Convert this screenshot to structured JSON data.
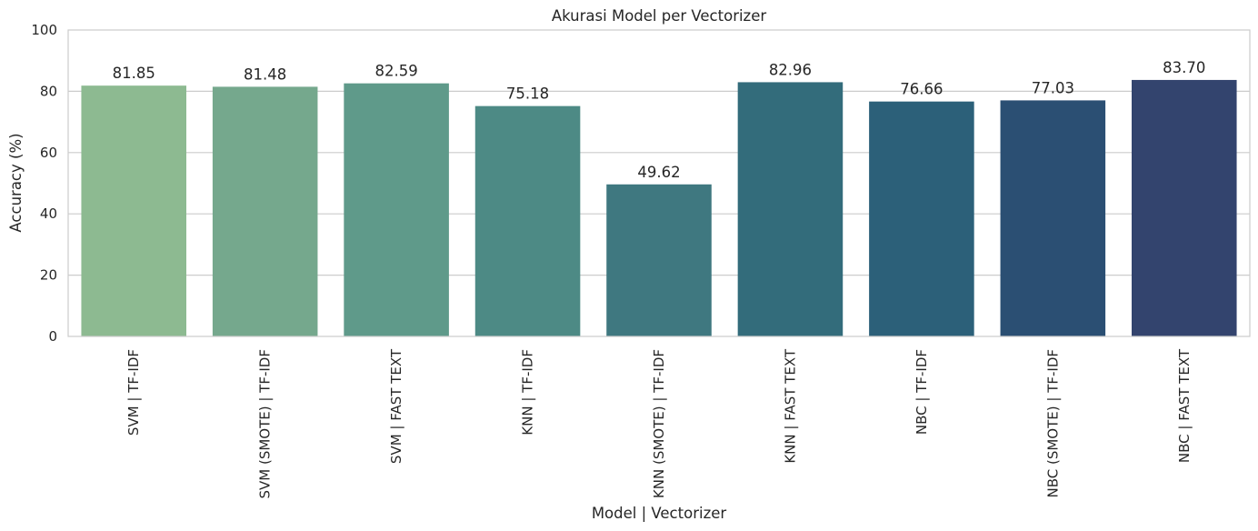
{
  "chart_data": {
    "type": "bar",
    "title": "Akurasi Model per Vectorizer",
    "xlabel": "Model | Vectorizer",
    "ylabel": "Accuracy (%)",
    "ylim": [
      0,
      100
    ],
    "yticks": [
      0,
      20,
      40,
      60,
      80,
      100
    ],
    "grid": "horizontal",
    "categories": [
      "SVM | TF-IDF",
      "SVM (SMOTE) | TF-IDF",
      "SVM | FAST TEXT",
      "KNN | TF-IDF",
      "KNN (SMOTE) | TF-IDF",
      "KNN | FAST TEXT",
      "NBC | TF-IDF",
      "NBC (SMOTE) | TF-IDF",
      "NBC | FAST TEXT"
    ],
    "values": [
      81.85,
      81.48,
      82.59,
      75.18,
      49.62,
      82.96,
      76.66,
      77.03,
      83.7
    ],
    "data_labels": [
      "81.85",
      "81.48",
      "82.59",
      "75.18",
      "49.62",
      "82.96",
      "76.66",
      "77.03",
      "83.70"
    ],
    "colors": [
      "#8dba91",
      "#75a88d",
      "#5f9a8a",
      "#4d8a85",
      "#3f7880",
      "#336c7b",
      "#2c6079",
      "#2b4f73",
      "#33446e"
    ]
  }
}
